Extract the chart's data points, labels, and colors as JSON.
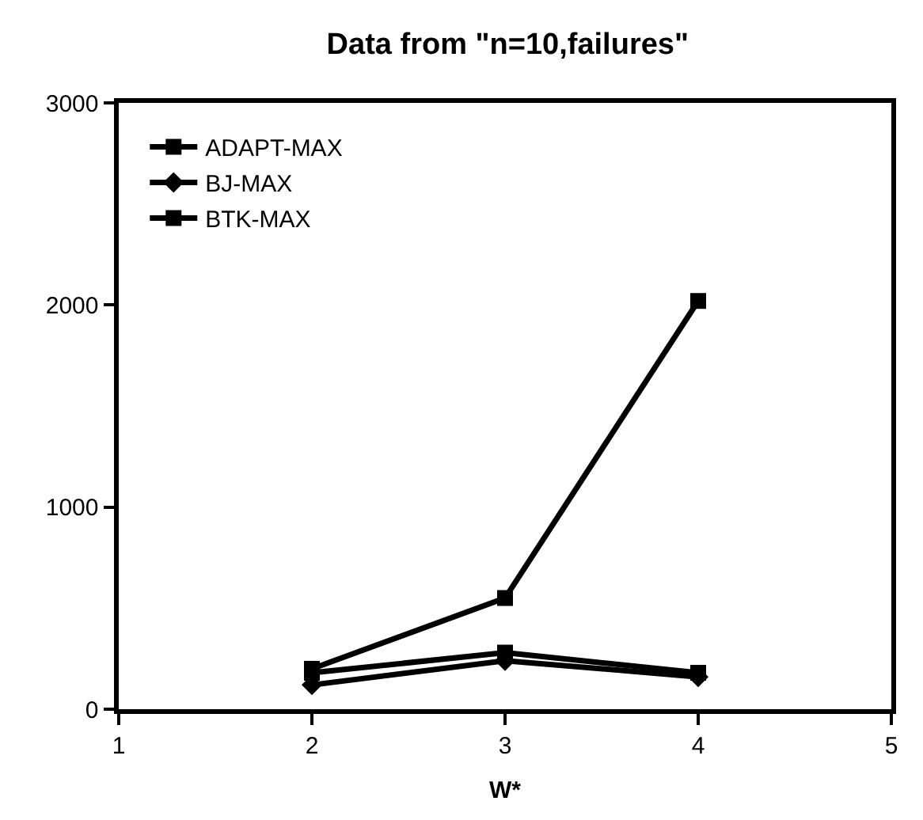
{
  "chart_data": {
    "type": "line",
    "title": "Data from \"n=10,failures\"",
    "xlabel": "W*",
    "x": [
      2,
      3,
      4
    ],
    "series": [
      {
        "name": "ADAPT-MAX",
        "color": "#000000",
        "values": [
          180,
          280,
          180
        ],
        "marker": "square"
      },
      {
        "name": "BJ-MAX",
        "color": "#000000",
        "values": [
          120,
          240,
          160
        ],
        "marker": "diamond"
      },
      {
        "name": "BTK-MAX",
        "color": "#000000",
        "values": [
          200,
          550,
          2020
        ],
        "marker": "square"
      }
    ],
    "xlim": [
      1,
      5
    ],
    "xticks": [
      1,
      2,
      3,
      4,
      5
    ],
    "ylim": [
      0,
      3000
    ],
    "yticks": [
      0,
      1000,
      2000,
      3000
    ],
    "legend": "top left",
    "line_style": "solid"
  }
}
